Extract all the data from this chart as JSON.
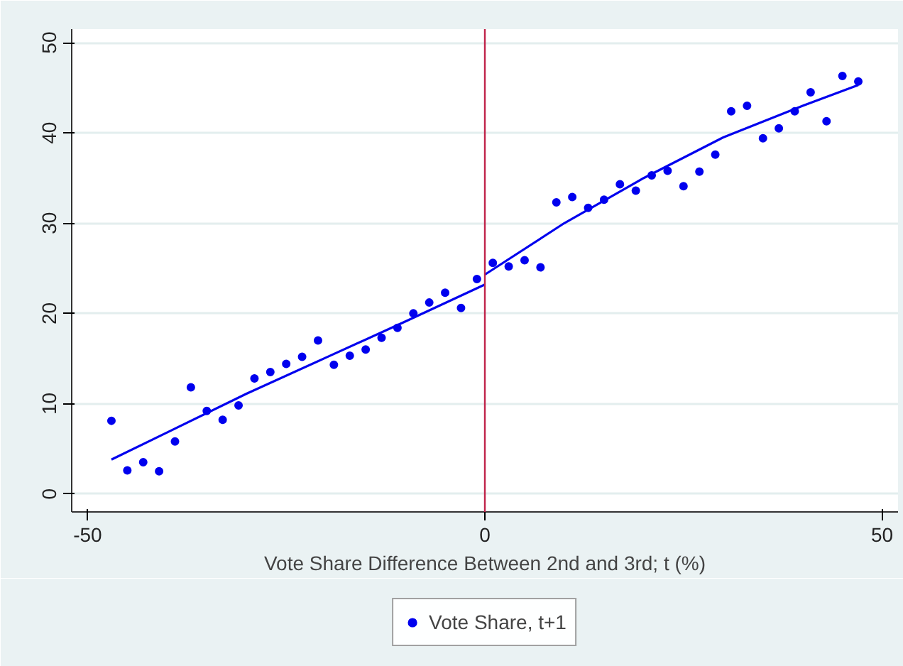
{
  "chart_data": {
    "type": "scatter",
    "xlabel": "Vote Share Difference Between 2nd and 3rd; t (%)",
    "xlim": [
      -52,
      52
    ],
    "ylim": [
      -2,
      51.5
    ],
    "xticks": [
      -50,
      0,
      50
    ],
    "yticks": [
      0,
      10,
      20,
      30,
      40,
      50
    ],
    "grid": "y",
    "legend": "bottom",
    "ref_lines": [
      {
        "axis": "x",
        "value": 0,
        "color": "#c0244a"
      }
    ],
    "series": [
      {
        "name": "Vote Share, t+1",
        "color": "#0000ee",
        "marker": "circle",
        "x": [
          -47,
          -45,
          -43,
          -41,
          -39,
          -37,
          -35,
          -33,
          -31,
          -29,
          -27,
          -25,
          -23,
          -21,
          -19,
          -17,
          -15,
          -13,
          -11,
          -9,
          -7,
          -5,
          -3,
          -1,
          1,
          3,
          5,
          7,
          9,
          11,
          13,
          15,
          17,
          19,
          21,
          23,
          25,
          27,
          29,
          31,
          33,
          35,
          37,
          39,
          41,
          43,
          45,
          47
        ],
        "values": [
          8.1,
          2.6,
          3.5,
          2.5,
          5.8,
          11.8,
          9.2,
          8.2,
          9.8,
          12.8,
          13.5,
          14.4,
          15.2,
          17.0,
          14.3,
          15.3,
          16.0,
          17.3,
          18.4,
          20.0,
          21.2,
          22.3,
          20.6,
          23.8,
          25.6,
          25.2,
          25.9,
          25.1,
          32.3,
          32.9,
          31.7,
          32.6,
          34.3,
          33.6,
          35.3,
          35.8,
          34.1,
          35.7,
          37.6,
          42.4,
          43.0,
          39.4,
          40.5,
          42.4,
          44.5,
          41.3,
          46.3,
          45.7
        ]
      },
      {
        "type": "line",
        "color": "#0000ee",
        "marker": "none",
        "x": [
          -47,
          -40,
          -30,
          -20,
          -10,
          0
        ],
        "values": [
          3.8,
          6.8,
          11.1,
          15.1,
          19.1,
          23.2
        ]
      },
      {
        "type": "line",
        "color": "#0000ee",
        "marker": "none",
        "x": [
          0,
          10,
          20,
          30,
          40,
          47
        ],
        "values": [
          24.3,
          30.0,
          35.0,
          39.5,
          43.0,
          45.3
        ]
      }
    ]
  }
}
